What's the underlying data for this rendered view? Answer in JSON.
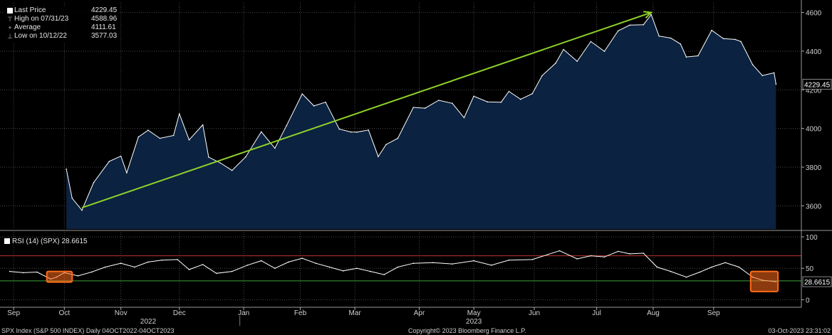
{
  "chart_data": [
    {
      "type": "area",
      "series": [
        {
          "name": "Last Price",
          "x": [
            "2022-10-04",
            "2022-10-07",
            "2022-10-12",
            "2022-10-18",
            "2022-10-26",
            "2022-11-01",
            "2022-11-04",
            "2022-11-10",
            "2022-11-15",
            "2022-11-21",
            "2022-11-28",
            "2022-12-01",
            "2022-12-06",
            "2022-12-13",
            "2022-12-16",
            "2022-12-22",
            "2022-12-28",
            "2023-01-04",
            "2023-01-12",
            "2023-01-19",
            "2023-01-25",
            "2023-02-02",
            "2023-02-08",
            "2023-02-14",
            "2023-02-21",
            "2023-02-27",
            "2023-03-02",
            "2023-03-08",
            "2023-03-13",
            "2023-03-17",
            "2023-03-23",
            "2023-03-31",
            "2023-04-06",
            "2023-04-13",
            "2023-04-20",
            "2023-04-26",
            "2023-05-01",
            "2023-05-08",
            "2023-05-15",
            "2023-05-19",
            "2023-05-25",
            "2023-05-31",
            "2023-06-05",
            "2023-06-12",
            "2023-06-16",
            "2023-06-23",
            "2023-06-30",
            "2023-07-07",
            "2023-07-14",
            "2023-07-20",
            "2023-07-27",
            "2023-07-31",
            "2023-08-04",
            "2023-08-10",
            "2023-08-15",
            "2023-08-18",
            "2023-08-24",
            "2023-08-31",
            "2023-09-06",
            "2023-09-12",
            "2023-09-15",
            "2023-09-21",
            "2023-09-26",
            "2023-10-02",
            "2023-10-03"
          ],
          "values": [
            3790,
            3639,
            3577,
            3720,
            3830,
            3857,
            3771,
            3956,
            3991,
            3949,
            3964,
            4076,
            3941,
            4019,
            3852,
            3822,
            3783,
            3853,
            3983,
            3898,
            4016,
            4179,
            4117,
            4136,
            3997,
            3982,
            3981,
            3992,
            3855,
            3917,
            3949,
            4109,
            4105,
            4146,
            4130,
            4056,
            4167,
            4138,
            4136,
            4192,
            4151,
            4180,
            4273,
            4338,
            4409,
            4348,
            4450,
            4399,
            4505,
            4535,
            4537,
            4589,
            4478,
            4468,
            4437,
            4370,
            4376,
            4508,
            4465,
            4461,
            4450,
            4330,
            4274,
            4288,
            4229
          ]
        }
      ],
      "ylim": [
        3480,
        4650
      ],
      "yticks": [
        3600,
        3800,
        4000,
        4200,
        4400,
        4600
      ],
      "grid": true,
      "legend": "top-left",
      "last_value_label": "4229.45",
      "trendline": {
        "from": [
          "2022-10-12",
          3590
        ],
        "to": [
          "2023-07-31",
          4600
        ],
        "color": "#8fd12a"
      }
    },
    {
      "type": "line",
      "title": "RSI (14) (SPX) 28.6615",
      "series": [
        {
          "name": "RSI (14) (SPX)",
          "x": [
            "2022-09-05",
            "2022-09-12",
            "2022-09-19",
            "2022-09-26",
            "2022-09-29",
            "2022-10-03",
            "2022-10-10",
            "2022-10-17",
            "2022-10-24",
            "2022-11-01",
            "2022-11-08",
            "2022-11-15",
            "2022-11-22",
            "2022-11-30",
            "2022-12-06",
            "2022-12-13",
            "2022-12-20",
            "2022-12-28",
            "2023-01-05",
            "2023-01-12",
            "2023-01-19",
            "2023-01-26",
            "2023-02-02",
            "2023-02-09",
            "2023-02-16",
            "2023-02-23",
            "2023-03-02",
            "2023-03-09",
            "2023-03-16",
            "2023-03-23",
            "2023-03-31",
            "2023-04-10",
            "2023-04-20",
            "2023-05-01",
            "2023-05-10",
            "2023-05-19",
            "2023-05-31",
            "2023-06-08",
            "2023-06-14",
            "2023-06-23",
            "2023-06-30",
            "2023-07-07",
            "2023-07-14",
            "2023-07-20",
            "2023-07-27",
            "2023-08-03",
            "2023-08-10",
            "2023-08-18",
            "2023-08-25",
            "2023-08-31",
            "2023-09-07",
            "2023-09-14",
            "2023-09-21",
            "2023-09-26",
            "2023-10-03"
          ],
          "values": [
            45,
            43,
            44,
            33,
            36,
            43,
            38,
            44,
            52,
            58,
            52,
            60,
            63,
            64,
            48,
            56,
            42,
            45,
            55,
            62,
            50,
            60,
            66,
            58,
            52,
            46,
            50,
            45,
            40,
            52,
            58,
            59,
            57,
            62,
            55,
            63,
            64,
            72,
            78,
            65,
            70,
            68,
            77,
            73,
            74,
            52,
            45,
            36,
            44,
            52,
            59,
            52,
            36,
            31,
            28.66
          ]
        }
      ],
      "ylim": [
        -12,
        108
      ],
      "yticks": [
        0,
        50,
        100
      ],
      "overbought": 70,
      "oversold": 30,
      "last_value_label": "28.6615"
    }
  ],
  "legend": {
    "items": [
      {
        "label": "Last Price",
        "value": "4229.45"
      },
      {
        "label": "High on 07/31/23",
        "value": "4588.96"
      },
      {
        "label": "Average",
        "value": "4111.61"
      },
      {
        "label": "Low on 10/12/22",
        "value": "3577.03"
      }
    ]
  },
  "rsi_legend": "RSI (14) (SPX) 28.6615",
  "x_axis": {
    "months": [
      {
        "label": "Sep",
        "date": "2022-09-07"
      },
      {
        "label": "Oct",
        "date": "2022-10-03"
      },
      {
        "label": "Nov",
        "date": "2022-11-01"
      },
      {
        "label": "Dec",
        "date": "2022-12-01"
      },
      {
        "label": "Jan",
        "date": "2023-01-03"
      },
      {
        "label": "Feb",
        "date": "2023-02-01"
      },
      {
        "label": "Mar",
        "date": "2023-03-01"
      },
      {
        "label": "Apr",
        "date": "2023-04-03"
      },
      {
        "label": "May",
        "date": "2023-05-01"
      },
      {
        "label": "Jun",
        "date": "2023-06-01"
      },
      {
        "label": "Jul",
        "date": "2023-07-03"
      },
      {
        "label": "Aug",
        "date": "2023-08-01"
      },
      {
        "label": "Sep",
        "date": "2023-09-01"
      }
    ],
    "years": [
      {
        "label": "2022",
        "date": "2022-11-15"
      },
      {
        "label": "2023",
        "date": "2023-05-01"
      }
    ]
  },
  "highlights": [
    {
      "from": "2022-09-24",
      "to": "2022-10-07",
      "low": 28,
      "high": 45
    },
    {
      "from": "2023-09-20",
      "to": "2023-10-04",
      "low": 13,
      "high": 45
    }
  ],
  "colors": {
    "line": "#ffffff",
    "area": "#0b2240",
    "grid": "#4a4a4a",
    "trend": "#8fd12a",
    "overbought": "#c0362c",
    "oversold": "#3ea33e",
    "highlight": "#ff6a1a"
  },
  "footer": {
    "left": "SPX Index (S&P 500 INDEX)  Daily 04OCT2022-04OCT2023",
    "center": "Copyright© 2023 Bloomberg Finance L.P.",
    "right": "03-Oct-2023 23:31:02"
  }
}
